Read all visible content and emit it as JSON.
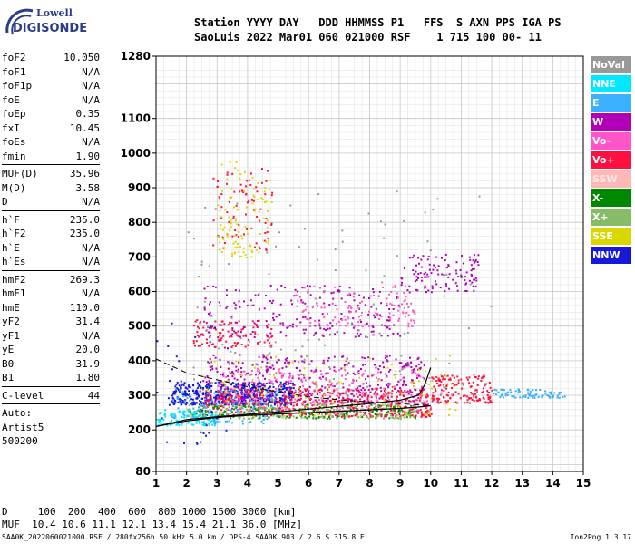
{
  "logo": {
    "top": "Lowell",
    "main": "DIGISONDE"
  },
  "header": {
    "line1": "Station YYYY DAY   DDD HHMMSS P1   FFS  S AXN PPS IGA PS",
    "line2": "SaoLuis 2022 Mar01 060 021000 RSF    1 715 100 00- 11"
  },
  "params": [
    {
      "k": "foF2",
      "v": "10.050"
    },
    {
      "k": "foF1",
      "v": "N/A"
    },
    {
      "k": "foF1p",
      "v": "N/A"
    },
    {
      "k": "foE",
      "v": "N/A"
    },
    {
      "k": "foEp",
      "v": "0.35"
    },
    {
      "k": "fxI",
      "v": "10.45"
    },
    {
      "k": "foEs",
      "v": "N/A"
    },
    {
      "k": "fmin",
      "v": "1.90"
    },
    {
      "k": "MUF(D)",
      "v": "35.96",
      "divider_before": true
    },
    {
      "k": "M(D)",
      "v": "3.58"
    },
    {
      "k": "D",
      "v": "N/A"
    },
    {
      "k": "h`F",
      "v": "235.0",
      "divider_before": true
    },
    {
      "k": "h`F2",
      "v": "235.0"
    },
    {
      "k": "h`E",
      "v": "N/A"
    },
    {
      "k": "h`Es",
      "v": "N/A"
    },
    {
      "k": "hmF2",
      "v": "269.3",
      "divider_before": true
    },
    {
      "k": "hmF1",
      "v": "N/A"
    },
    {
      "k": "hmE",
      "v": "110.0"
    },
    {
      "k": "yF2",
      "v": "31.4"
    },
    {
      "k": "yF1",
      "v": "N/A"
    },
    {
      "k": "yE",
      "v": "20.0"
    },
    {
      "k": "B0",
      "v": "31.9"
    },
    {
      "k": "B1",
      "v": "1.80"
    },
    {
      "k": "C-level",
      "v": "44",
      "divider_before": true
    }
  ],
  "autoscale": {
    "line1": "Auto:",
    "line2": "Artist5",
    "line3": "500200"
  },
  "legend": [
    {
      "label": "NoVal",
      "color": "#999999"
    },
    {
      "label": "NNE",
      "color": "#00e8ff"
    },
    {
      "label": "E",
      "color": "#3ab0ff"
    },
    {
      "label": "W",
      "color": "#b000b8"
    },
    {
      "label": "Vo-",
      "color": "#ff55c8"
    },
    {
      "label": "Vo+",
      "color": "#ff1040"
    },
    {
      "label": "SSW",
      "color": "#ffb8b8"
    },
    {
      "label": "X-",
      "color": "#008800"
    },
    {
      "label": "X+",
      "color": "#88bb66"
    },
    {
      "label": "SSE",
      "color": "#d8d800"
    },
    {
      "label": "NNW",
      "color": "#1818d8"
    }
  ],
  "footer": {
    "line1": "D     100  200  400  600  800 1000 1500 3000 [km]",
    "line2": "MUF  10.4 10.6 11.1 12.1 13.4 15.4 21.1 36.0 [MHz]",
    "line3": "SAA0K_2022060021000.RSF / 280fx256h 50 kHz 5.0 km / DPS-4 SAA0K 903 / 2.6 S 315.8 E",
    "version": "Ion2Png 1.3.17"
  },
  "chart_data": {
    "type": "scatter",
    "xlim": [
      1,
      15
    ],
    "ylim": [
      80,
      1280
    ],
    "x_ticks": [
      1,
      2,
      3,
      4,
      5,
      6,
      7,
      8,
      9,
      10,
      11,
      12,
      13,
      14,
      15
    ],
    "y_ticks": [
      80,
      200,
      300,
      400,
      500,
      600,
      700,
      800,
      900,
      1000,
      1100,
      1280
    ],
    "grid": true,
    "profile_curve": {
      "x": [
        1.0,
        1.5,
        2.0,
        3.0,
        4.0,
        5.0,
        6.0,
        7.0,
        8.0,
        9.0,
        9.6,
        10.0
      ],
      "y": [
        210,
        218,
        226,
        236,
        242,
        246,
        250,
        254,
        258,
        262,
        266,
        270
      ]
    },
    "trace_o_f": {
      "x": [
        1.0,
        1.5,
        2.0,
        3.0,
        4.0,
        5.0,
        6.0,
        7.0,
        8.0,
        9.0,
        9.6,
        9.8,
        10.0
      ],
      "y": [
        210,
        220,
        230,
        238,
        245,
        252,
        260,
        268,
        276,
        286,
        300,
        330,
        380
      ]
    },
    "dashed_curve": {
      "x": [
        1.0,
        2.0,
        3.0,
        4.0,
        5.0,
        6.0,
        7.0,
        8.0,
        9.0,
        10.0
      ],
      "y": [
        405,
        365,
        345,
        325,
        310,
        296,
        287,
        281,
        276,
        270
      ]
    },
    "dot_regions": [
      {
        "color": "#1818d8",
        "x": [
          1.5,
          5.5
        ],
        "y": [
          275,
          340
        ],
        "n": 500
      },
      {
        "color": "#b000b8",
        "x": [
          2.5,
          9.8
        ],
        "y": [
          280,
          420
        ],
        "n": 450
      },
      {
        "color": "#ff1040",
        "x": [
          2.5,
          10.0
        ],
        "y": [
          240,
          320
        ],
        "n": 500
      },
      {
        "color": "#ff55c8",
        "x": [
          3.0,
          10.0
        ],
        "y": [
          250,
          380
        ],
        "n": 250
      },
      {
        "color": "#008800",
        "x": [
          2.0,
          9.5
        ],
        "y": [
          235,
          275
        ],
        "n": 200
      },
      {
        "color": "#88bb66",
        "x": [
          2.0,
          9.5
        ],
        "y": [
          235,
          280
        ],
        "n": 200
      },
      {
        "color": "#d8d800",
        "x": [
          2.5,
          11.0
        ],
        "y": [
          240,
          420
        ],
        "n": 150
      },
      {
        "color": "#00e8ff",
        "x": [
          1.0,
          3.0
        ],
        "y": [
          215,
          260
        ],
        "n": 120
      },
      {
        "color": "#3ab0ff",
        "x": [
          1.5,
          5.0
        ],
        "y": [
          220,
          320
        ],
        "n": 120
      },
      {
        "color": "#b000b8",
        "x": [
          2.5,
          9.0
        ],
        "y": [
          470,
          620
        ],
        "n": 220
      },
      {
        "color": "#ff1040",
        "x": [
          2.2,
          4.8
        ],
        "y": [
          440,
          520
        ],
        "n": 100
      },
      {
        "color": "#b000b8",
        "x": [
          9.0,
          11.6
        ],
        "y": [
          600,
          710
        ],
        "n": 120
      },
      {
        "color": "#ff1040",
        "x": [
          10.0,
          12.0
        ],
        "y": [
          280,
          360
        ],
        "n": 150
      },
      {
        "color": "#3ab0ff",
        "x": [
          12.0,
          14.4
        ],
        "y": [
          295,
          320
        ],
        "n": 80
      },
      {
        "color": "#ff1040",
        "x": [
          2.8,
          4.8
        ],
        "y": [
          720,
          960
        ],
        "n": 80
      },
      {
        "color": "#d8d800",
        "x": [
          3.0,
          4.8
        ],
        "y": [
          700,
          980
        ],
        "n": 100
      },
      {
        "color": "#999999",
        "x": [
          2.0,
          12.0
        ],
        "y": [
          300,
          900
        ],
        "n": 120
      },
      {
        "color": "#ff55c8",
        "x": [
          5.5,
          9.5
        ],
        "y": [
          500,
          620
        ],
        "n": 120
      },
      {
        "color": "#1818d8",
        "x": [
          1.0,
          3.5
        ],
        "y": [
          150,
          520
        ],
        "n": 40
      }
    ]
  }
}
